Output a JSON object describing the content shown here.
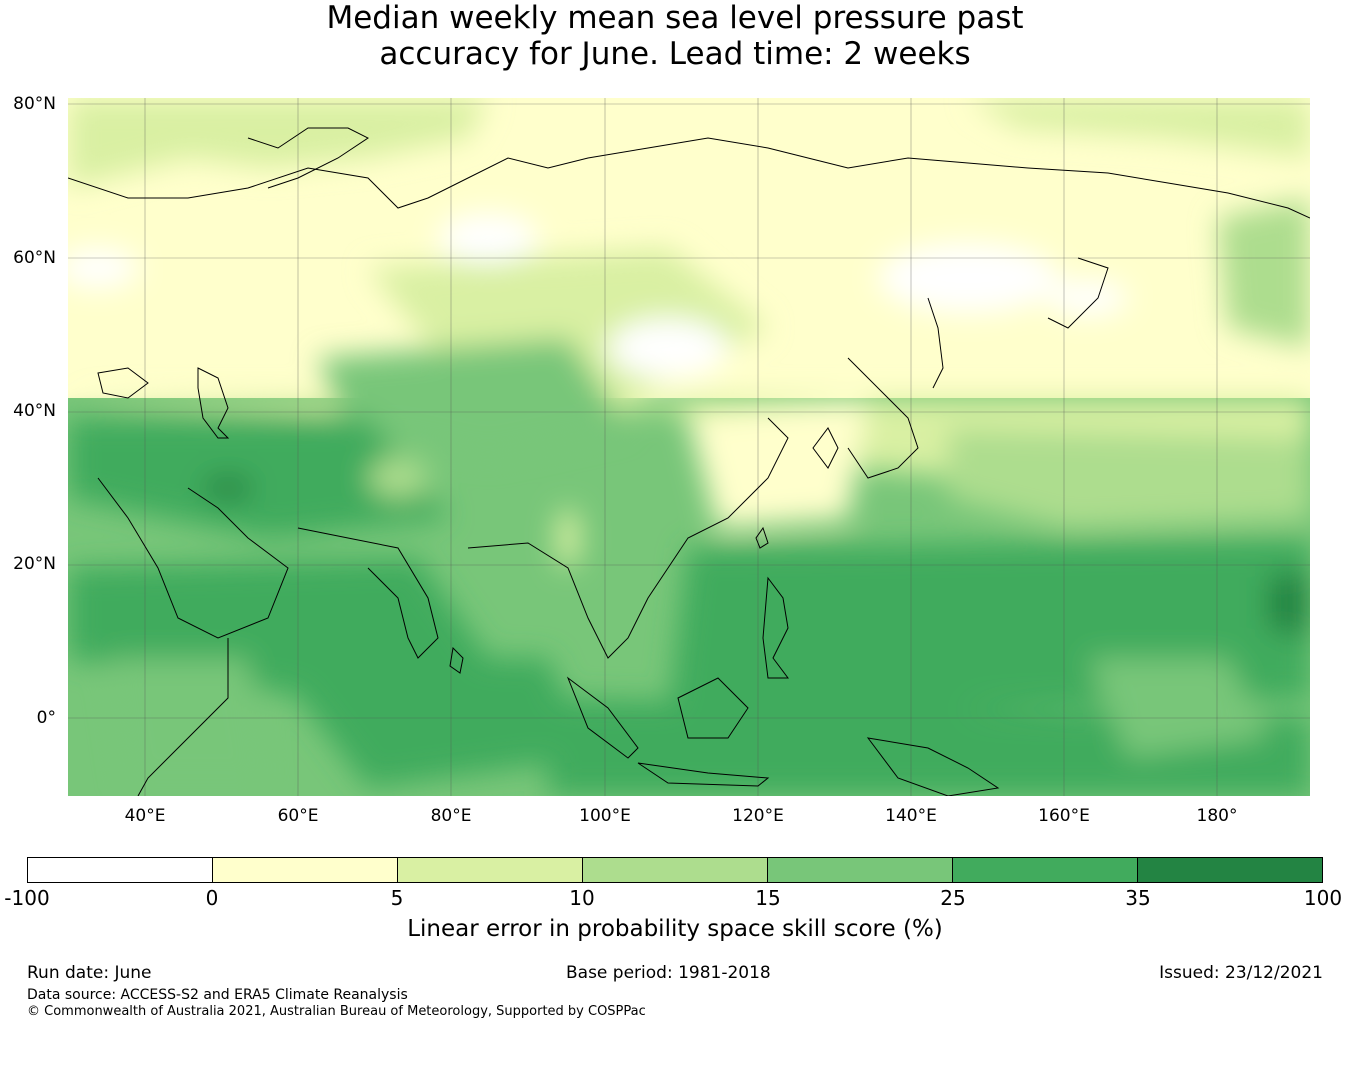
{
  "title_line1": "Median weekly mean sea level pressure past",
  "title_line2": "accuracy for June. Lead time: 2 weeks",
  "lat_labels": [
    "80°N",
    "60°N",
    "40°N",
    "20°N",
    "0°"
  ],
  "lon_labels": [
    "40°E",
    "60°E",
    "80°E",
    "100°E",
    "120°E",
    "140°E",
    "160°E",
    "180°"
  ],
  "colorbar": {
    "label": "Linear error in probability space skill score (%)",
    "bounds": [
      "-100",
      "0",
      "5",
      "10",
      "15",
      "25",
      "35",
      "100"
    ],
    "colors": [
      "#ffffff",
      "#ffffcc",
      "#d9f0a3",
      "#addd8e",
      "#78c679",
      "#41ab5d",
      "#238443"
    ]
  },
  "footer": {
    "run_date": "Run date: June",
    "base_period": "Base period: 1981-2018",
    "issued": "Issued: 23/12/2021",
    "data_source": "Data source: ACCESS-S2 and ERA5 Climate Reanalysis",
    "copyright": "© Commonwealth of Australia 2021, Australian Bureau of Meteorology, Supported by COSPPac"
  }
}
